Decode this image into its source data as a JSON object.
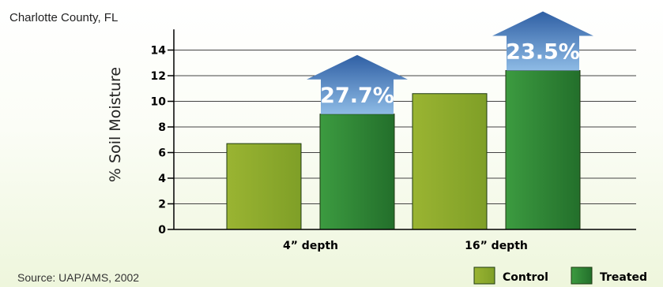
{
  "subtitle": "Charlotte County, FL",
  "source": "Source: UAP/AMS, 2002",
  "colors": {
    "control": "#8fac2c",
    "treated": "#2f8b38",
    "arrow_top": "#2f5fa4",
    "arrow_bottom": "#8ebbe5"
  },
  "chart_data": {
    "type": "bar",
    "ylabel": "% Soil Moisture",
    "xlabel": "",
    "ylim": [
      0,
      15
    ],
    "yticks": [
      0,
      2,
      4,
      6,
      8,
      10,
      12,
      14
    ],
    "grid": true,
    "categories": [
      "4” depth",
      "16” depth"
    ],
    "series": [
      {
        "name": "Control",
        "values": [
          6.7,
          10.6
        ]
      },
      {
        "name": "Treated",
        "values": [
          9.0,
          12.4
        ]
      }
    ],
    "annotations": [
      {
        "category": "4” depth",
        "text": "27.7%"
      },
      {
        "category": "16” depth",
        "text": "23.5%"
      }
    ],
    "legend_position": "bottom-right"
  }
}
